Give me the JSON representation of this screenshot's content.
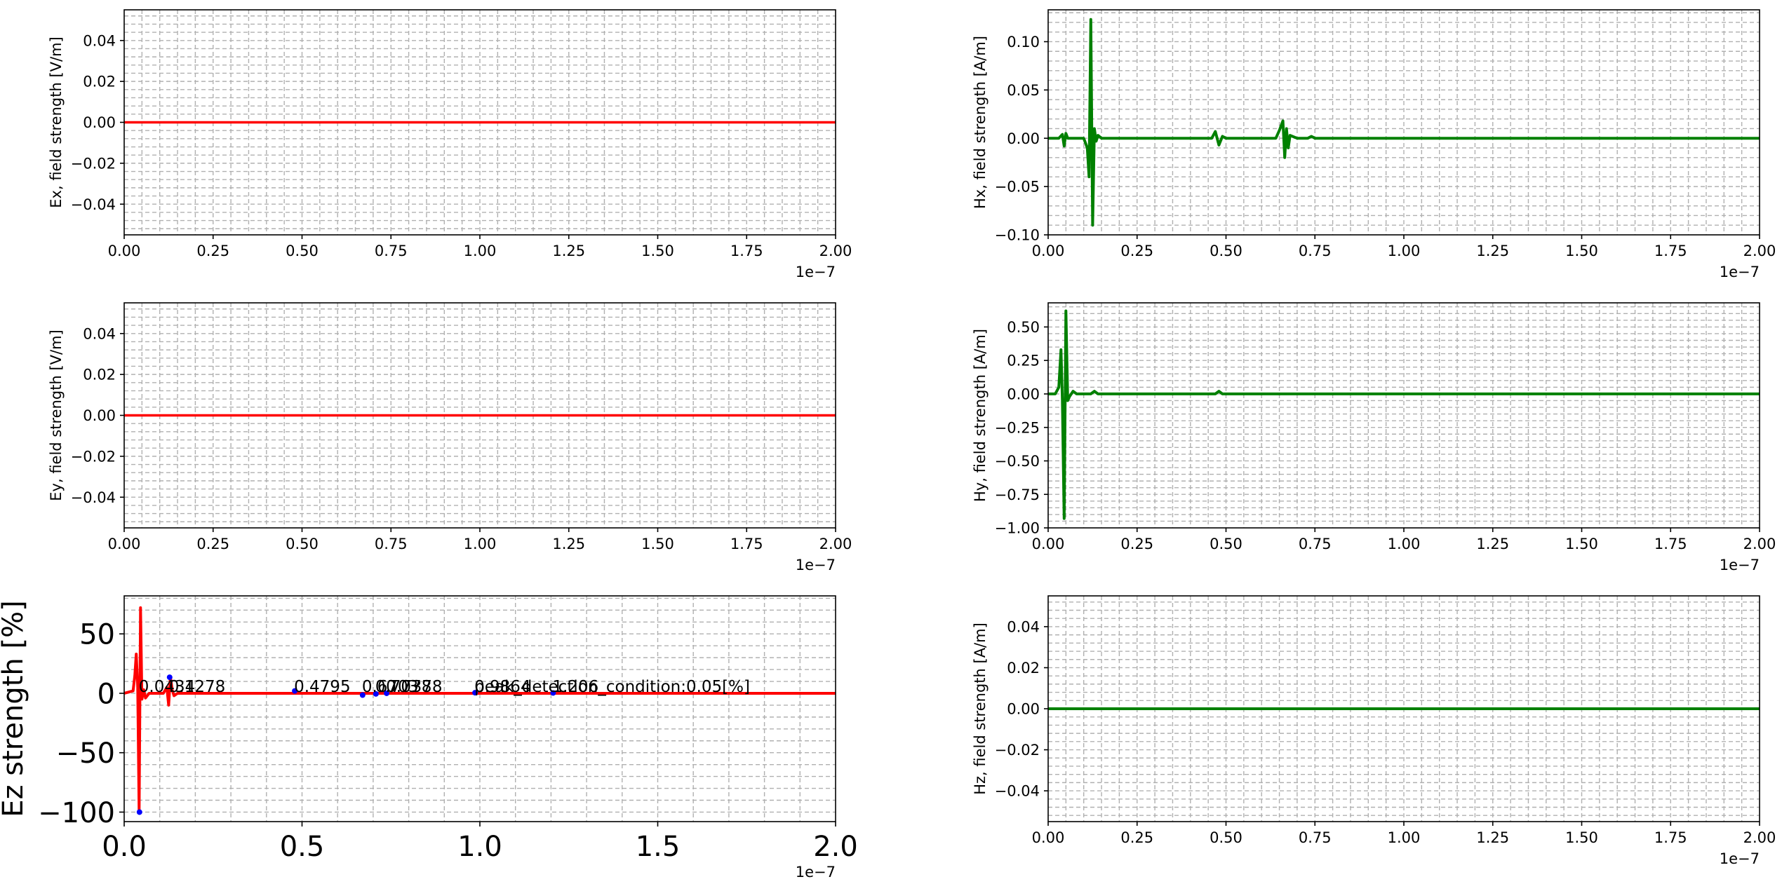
{
  "chart_data": [
    {
      "type": "line",
      "ylabel": "Ex, field strength [V/m]",
      "xlim": [
        0,
        2.0
      ],
      "ylim": [
        -0.055,
        0.055
      ],
      "x_ticks": [
        0,
        0.25,
        0.5,
        0.75,
        1.0,
        1.25,
        1.5,
        1.75,
        2.0
      ],
      "x_tick_labels": [
        "0.00",
        "0.25",
        "0.50",
        "0.75",
        "1.00",
        "1.25",
        "1.50",
        "1.75",
        "2.00"
      ],
      "y_ticks": [
        -0.04,
        -0.02,
        0,
        0.02,
        0.04
      ],
      "y_tick_labels": [
        "−0.04",
        "−0.02",
        "0.00",
        "0.02",
        "0.04"
      ],
      "offset_label": "1e−7",
      "grid": true,
      "series": [
        {
          "color": "#ff0000",
          "x": [
            0,
            2.0
          ],
          "y": [
            0,
            0
          ]
        }
      ]
    },
    {
      "type": "line",
      "ylabel": "Hx, field strength [A/m]",
      "xlim": [
        0,
        2.0
      ],
      "ylim": [
        -0.1,
        0.133
      ],
      "x_ticks": [
        0,
        0.25,
        0.5,
        0.75,
        1.0,
        1.25,
        1.5,
        1.75,
        2.0
      ],
      "x_tick_labels": [
        "0.00",
        "0.25",
        "0.50",
        "0.75",
        "1.00",
        "1.25",
        "1.50",
        "1.75",
        "2.00"
      ],
      "y_ticks": [
        -0.1,
        -0.05,
        0,
        0.05,
        0.1
      ],
      "y_tick_labels": [
        "−0.10",
        "−0.05",
        "0.00",
        "0.05",
        "0.10"
      ],
      "offset_label": "1e−7",
      "grid": true,
      "series": [
        {
          "color": "#008000",
          "x": [
            0,
            0.03,
            0.04,
            0.045,
            0.05,
            0.055,
            0.06,
            0.08,
            0.1,
            0.11,
            0.115,
            0.12,
            0.125,
            0.13,
            0.135,
            0.14,
            0.15,
            0.2,
            0.46,
            0.47,
            0.48,
            0.49,
            0.5,
            0.64,
            0.65,
            0.66,
            0.665,
            0.67,
            0.675,
            0.68,
            0.7,
            0.73,
            0.74,
            0.75,
            1.0,
            2.0
          ],
          "y": [
            0,
            0,
            0.004,
            -0.008,
            0.005,
            0,
            0,
            0,
            0,
            -0.01,
            -0.04,
            0.123,
            -0.09,
            0.01,
            -0.003,
            0.003,
            0,
            0,
            0,
            0.007,
            -0.007,
            0.002,
            0,
            0,
            0.008,
            0.018,
            -0.02,
            0.01,
            -0.01,
            0.003,
            0,
            0,
            0.002,
            0,
            0,
            0
          ]
        }
      ]
    },
    {
      "type": "line",
      "ylabel": "Ey, field strength [V/m]",
      "xlim": [
        0,
        2.0
      ],
      "ylim": [
        -0.055,
        0.055
      ],
      "x_ticks": [
        0,
        0.25,
        0.5,
        0.75,
        1.0,
        1.25,
        1.5,
        1.75,
        2.0
      ],
      "x_tick_labels": [
        "0.00",
        "0.25",
        "0.50",
        "0.75",
        "1.00",
        "1.25",
        "1.50",
        "1.75",
        "2.00"
      ],
      "y_ticks": [
        -0.04,
        -0.02,
        0,
        0.02,
        0.04
      ],
      "y_tick_labels": [
        "−0.04",
        "−0.02",
        "0.00",
        "0.02",
        "0.04"
      ],
      "offset_label": "1e−7",
      "grid": true,
      "series": [
        {
          "color": "#ff0000",
          "x": [
            0,
            2.0
          ],
          "y": [
            0,
            0
          ]
        }
      ]
    },
    {
      "type": "line",
      "ylabel": "Hy, field strength [A/m]",
      "xlim": [
        0,
        2.0
      ],
      "ylim": [
        -1.0,
        0.68
      ],
      "x_ticks": [
        0,
        0.25,
        0.5,
        0.75,
        1.0,
        1.25,
        1.5,
        1.75,
        2.0
      ],
      "x_tick_labels": [
        "0.00",
        "0.25",
        "0.50",
        "0.75",
        "1.00",
        "1.25",
        "1.50",
        "1.75",
        "2.00"
      ],
      "y_ticks": [
        -1.0,
        -0.75,
        -0.5,
        -0.25,
        0,
        0.25,
        0.5
      ],
      "y_tick_labels": [
        "−1.00",
        "−0.75",
        "−0.50",
        "−0.25",
        "0.00",
        "0.25",
        "0.50"
      ],
      "offset_label": "1e−7",
      "grid": true,
      "series": [
        {
          "color": "#008000",
          "x": [
            0,
            0.02,
            0.03,
            0.036,
            0.04,
            0.045,
            0.05,
            0.055,
            0.06,
            0.07,
            0.08,
            0.12,
            0.13,
            0.14,
            0.47,
            0.48,
            0.49,
            1.0,
            2.0
          ],
          "y": [
            0,
            0,
            0.05,
            0.33,
            -0.05,
            -0.93,
            0.62,
            -0.05,
            -0.02,
            0.02,
            0,
            0,
            0.02,
            0,
            0,
            0.02,
            0,
            0,
            0
          ]
        }
      ]
    },
    {
      "type": "line",
      "ylabel": "Ez strength [%]",
      "xlim": [
        0,
        2.0
      ],
      "ylim": [
        -108,
        82
      ],
      "x_ticks": [
        0,
        0.5,
        1.0,
        1.5,
        2.0
      ],
      "x_tick_labels": [
        "0.0",
        "0.5",
        "1.0",
        "1.5",
        "2.0"
      ],
      "y_ticks": [
        -100,
        -50,
        0,
        50
      ],
      "y_tick_labels": [
        "−100",
        "−50",
        "0",
        "50"
      ],
      "offset_label": "1e−7",
      "grid": true,
      "series": [
        {
          "color": "#ff0000",
          "x": [
            0,
            0.025,
            0.03,
            0.034,
            0.038,
            0.042,
            0.046,
            0.05,
            0.055,
            0.06,
            0.07,
            0.08,
            0.11,
            0.12,
            0.125,
            0.13,
            0.135,
            0.14,
            0.15,
            2.0
          ],
          "y": [
            0,
            2,
            15,
            33,
            5,
            -100,
            72,
            -5,
            3,
            -4,
            0,
            0,
            0,
            5,
            -10,
            14,
            3,
            -2,
            0,
            0
          ]
        }
      ],
      "markers": {
        "color": "#0000ff",
        "x": [
          0.043,
          0.1278,
          0.4795,
          0.6703,
          0.7078,
          0.7378,
          0.9864,
          1.206
        ],
        "y": [
          -100,
          13.5,
          2,
          -1.5,
          -0.5,
          0,
          0.5,
          0.3
        ]
      },
      "annotations": [
        {
          "x": 0.043,
          "text": "0.0434"
        },
        {
          "x": 0.1278,
          "text": "0.1278"
        },
        {
          "x": 0.4795,
          "text": "0.4795"
        },
        {
          "x": 0.6703,
          "text": "0.6703"
        },
        {
          "x": 0.7078,
          "text": "0.7078"
        },
        {
          "x": 0.7378,
          "text": "0.7378"
        },
        {
          "x": 0.9864,
          "text": "0.9864"
        },
        {
          "x": 0.9864,
          "text": "peak_detection_condition:0.05[%]"
        },
        {
          "x": 1.206,
          "text": "1.206"
        }
      ]
    },
    {
      "type": "line",
      "ylabel": "Hz, field strength [A/m]",
      "xlim": [
        0,
        2.0
      ],
      "ylim": [
        -0.055,
        0.055
      ],
      "x_ticks": [
        0,
        0.25,
        0.5,
        0.75,
        1.0,
        1.25,
        1.5,
        1.75,
        2.0
      ],
      "x_tick_labels": [
        "0.00",
        "0.25",
        "0.50",
        "0.75",
        "1.00",
        "1.25",
        "1.50",
        "1.75",
        "2.00"
      ],
      "y_ticks": [
        -0.04,
        -0.02,
        0,
        0.02,
        0.04
      ],
      "y_tick_labels": [
        "−0.04",
        "−0.02",
        "0.00",
        "0.02",
        "0.04"
      ],
      "offset_label": "1e−7",
      "grid": true,
      "series": [
        {
          "color": "#008000",
          "x": [
            0,
            2.0
          ],
          "y": [
            0,
            0
          ]
        }
      ]
    }
  ]
}
